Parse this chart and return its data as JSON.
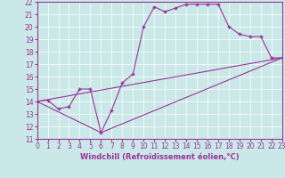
{
  "background_color": "#cbe8e8",
  "line_color": "#993399",
  "xlabel": "Windchill (Refroidissement éolien,°C)",
  "xlim": [
    0,
    23
  ],
  "ylim": [
    11,
    22
  ],
  "yticks": [
    11,
    12,
    13,
    14,
    15,
    16,
    17,
    18,
    19,
    20,
    21,
    22
  ],
  "xticks": [
    0,
    1,
    2,
    3,
    4,
    5,
    6,
    7,
    8,
    9,
    10,
    11,
    12,
    13,
    14,
    15,
    16,
    17,
    18,
    19,
    20,
    21,
    22,
    23
  ],
  "series1_x": [
    0,
    1,
    2,
    3,
    4,
    5,
    6,
    7,
    8,
    9,
    10,
    11,
    12,
    13,
    14,
    15,
    16,
    17,
    18,
    19,
    20,
    21,
    22,
    23
  ],
  "series1_y": [
    14.0,
    14.1,
    13.4,
    13.6,
    15.0,
    15.0,
    11.5,
    13.3,
    15.5,
    16.2,
    20.0,
    21.6,
    21.2,
    21.5,
    21.8,
    21.8,
    21.8,
    21.8,
    20.0,
    19.4,
    19.2,
    19.2,
    17.5,
    17.5
  ],
  "series2_x": [
    0,
    23
  ],
  "series2_y": [
    14.0,
    17.5
  ],
  "series3_x": [
    0,
    6,
    23
  ],
  "series3_y": [
    14.0,
    11.5,
    17.5
  ],
  "grid_color": "#ffffff",
  "xlabel_fontsize": 6,
  "tick_fontsize": 5.5
}
